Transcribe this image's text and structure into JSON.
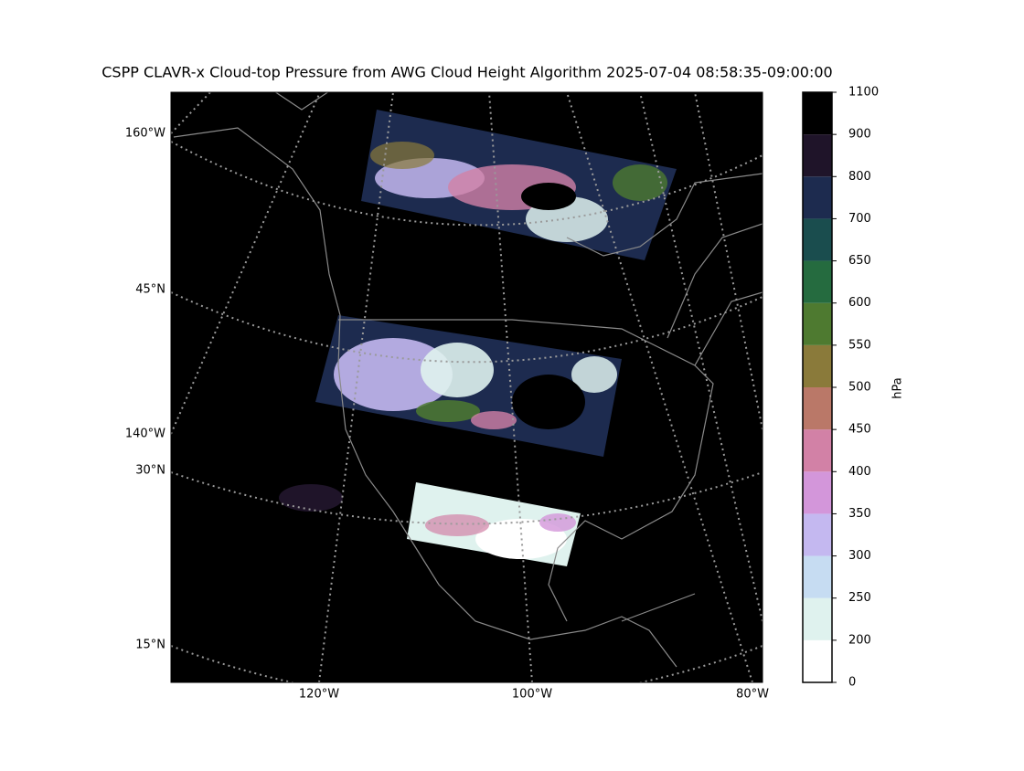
{
  "title": "CSPP CLAVR-x Cloud-top Pressure from AWG Cloud Height Algorithm 2025-07-04 08:58:35-09:00:00",
  "map": {
    "labels": [
      "160°W",
      "45°N",
      "140°W",
      "30°N",
      "15°N",
      "120°W",
      "100°W",
      "80°W"
    ]
  },
  "colorbar": {
    "label": "hPa",
    "ticks": [
      0,
      200,
      250,
      300,
      350,
      400,
      450,
      500,
      550,
      600,
      650,
      700,
      800,
      900,
      1100
    ],
    "colors": [
      "#ffffff",
      "#dff2ee",
      "#c6dcf2",
      "#c4b8f0",
      "#d396da",
      "#d281a6",
      "#ba7868",
      "#8a7a3a",
      "#4e7a30",
      "#256b3f",
      "#1a4d4e",
      "#1d2b4f",
      "#1f1429",
      "#000000"
    ]
  }
}
